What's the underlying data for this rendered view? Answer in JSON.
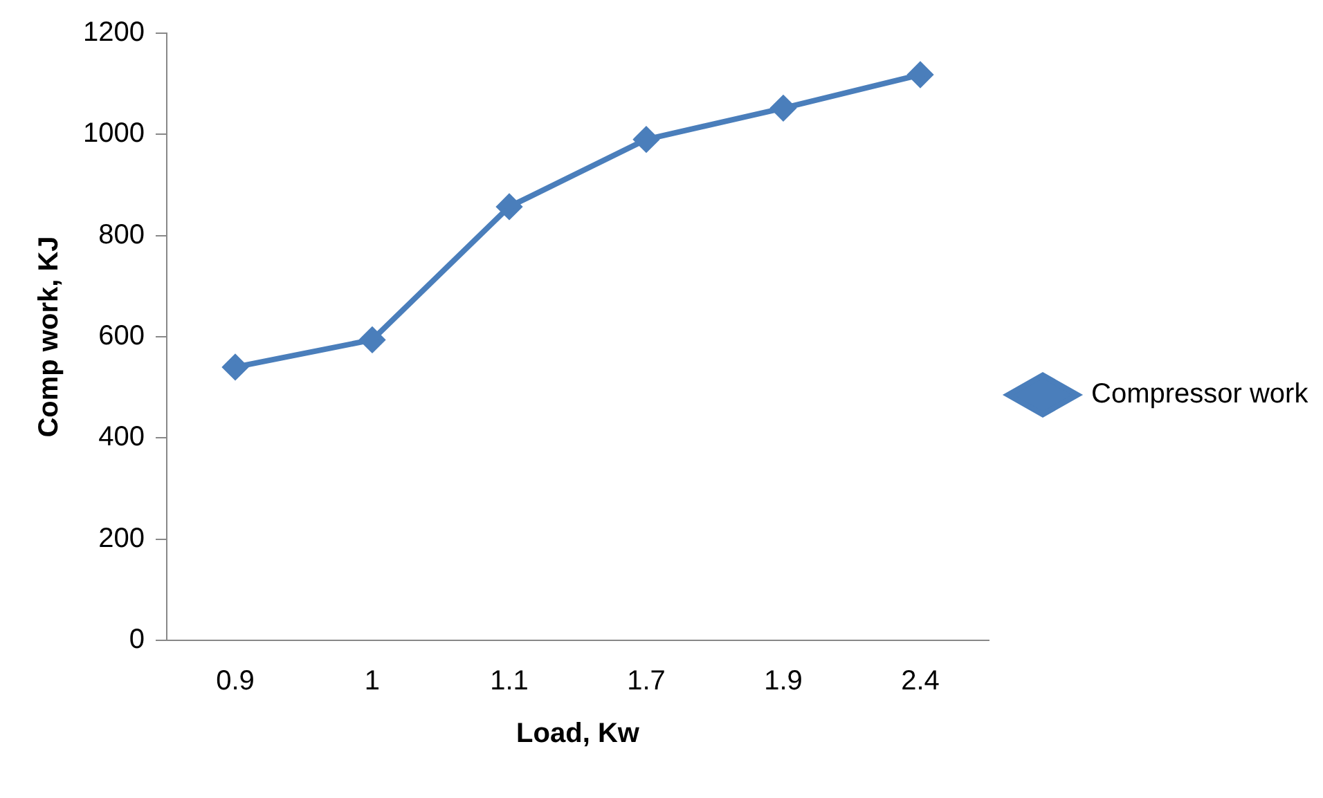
{
  "chart_data": {
    "type": "line",
    "xlabel": "Load, Kw",
    "ylabel": "Comp work, KJ",
    "categories": [
      "0.9",
      "1",
      "1.1",
      "1.7",
      "1.9",
      "2.4"
    ],
    "series": [
      {
        "name": "Compressor work",
        "color": "#4a7ebb",
        "values": [
          540,
          594,
          857,
          990,
          1052,
          1118
        ]
      }
    ],
    "ylim": [
      0,
      1200
    ],
    "yticks": [
      0,
      200,
      400,
      600,
      800,
      1000,
      1200
    ],
    "grid": false,
    "legend": "right",
    "marker": "diamond",
    "line_style": "solid"
  }
}
